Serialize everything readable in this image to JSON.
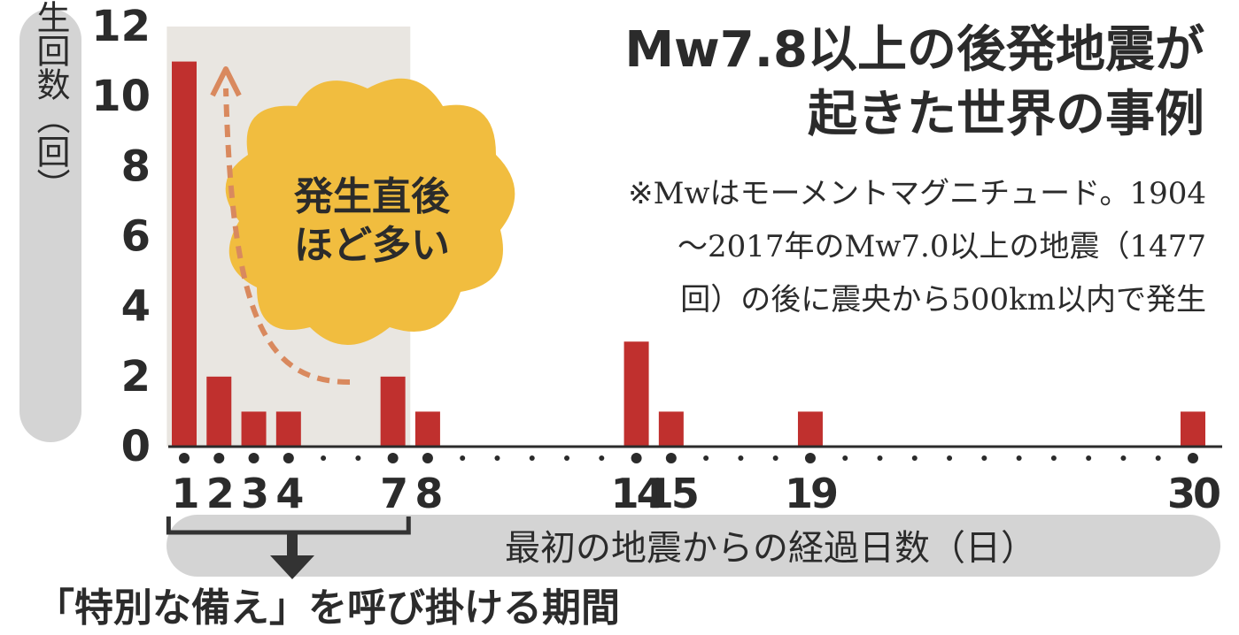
{
  "title_lines": [
    "Mw7.8以上の後発地震が",
    "起きた世界の事例"
  ],
  "note_lines": [
    "※Mwはモーメントマグニチュード。1904",
    "～2017年のMw7.0以上の地震（1477",
    "回）の後に震央から500km以内で発生"
  ],
  "callout_lines": [
    "発生直後",
    "ほど多い"
  ],
  "period_label": "「特別な備え」を呼び掛ける期間",
  "colors": {
    "bar": "#c0302e",
    "text": "#2b2b2b",
    "highlight_band": "#e9e6e1",
    "pill": "#d4d4d4",
    "callout_fill": "#f1bd3f",
    "arrow": "#d9895e"
  },
  "chart_data": {
    "type": "bar",
    "title": "Mw7.8以上の後発地震が起きた世界の事例",
    "xlabel": "最初の地震からの経過日数（日）",
    "ylabel": "発生回数（回）",
    "ylim": [
      0,
      12
    ],
    "yticks": [
      "0",
      "2",
      "4",
      "6",
      "8",
      "10",
      "12"
    ],
    "x_domain": [
      1,
      30
    ],
    "x_tick_labels": [
      "1",
      "2",
      "3",
      "4",
      "7",
      "8",
      "14",
      "15",
      "19",
      "30"
    ],
    "highlight_range": [
      1,
      7
    ],
    "x": [
      1,
      2,
      3,
      4,
      7,
      8,
      14,
      15,
      19,
      30
    ],
    "values": [
      11,
      2,
      1,
      1,
      2,
      1,
      3,
      1,
      1,
      1
    ]
  }
}
